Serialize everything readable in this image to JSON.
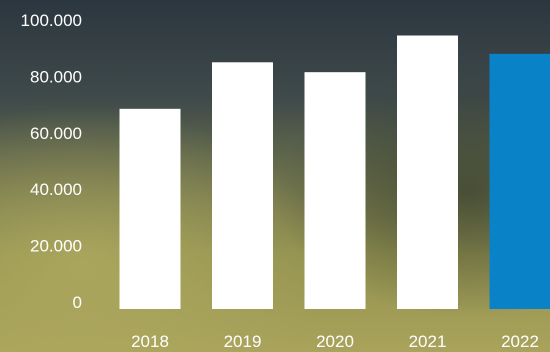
{
  "chart_data": {
    "type": "bar",
    "categories": [
      "2018",
      "2019",
      "2020",
      "2021",
      "2022"
    ],
    "values": [
      68500,
      85000,
      81500,
      94500,
      88000
    ],
    "ylim": [
      0,
      100000
    ],
    "y_ticks": [
      "0",
      "20.000",
      "40.000",
      "60.000",
      "80.000",
      "100.000"
    ],
    "y_tick_values": [
      0,
      20000,
      40000,
      60000,
      80000,
      100000
    ],
    "grid": false,
    "legend": "none",
    "bar_color": "#ffffff",
    "highlight_color": "#0a82c8",
    "highlight_category": "2022",
    "label_color": "#ffffff"
  },
  "background": {
    "description_colors": {
      "top": "#2f3a44",
      "upper_mid": "#4d5448",
      "lower_mid": "#8f9150",
      "bottom": "#a7a25a"
    }
  }
}
